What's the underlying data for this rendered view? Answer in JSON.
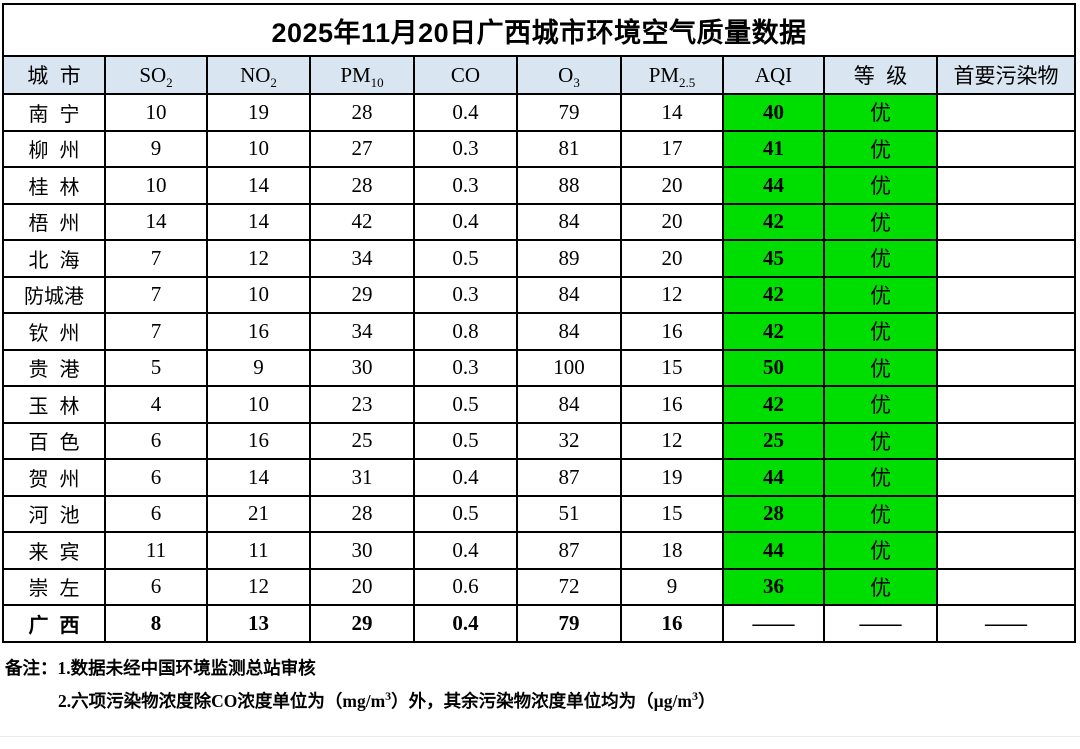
{
  "title": "2025年11月20日广西城市环境空气质量数据",
  "colors": {
    "header_bg": "#d9e5f1",
    "aqi_green": "#00dd00",
    "border": "#000000"
  },
  "table": {
    "columns": [
      {
        "base": "城市",
        "sub": ""
      },
      {
        "base": "SO",
        "sub": "2"
      },
      {
        "base": "NO",
        "sub": "2"
      },
      {
        "base": "PM",
        "sub": "10"
      },
      {
        "base": "CO",
        "sub": ""
      },
      {
        "base": "O",
        "sub": "3"
      },
      {
        "base": "PM",
        "sub": "2.5"
      },
      {
        "base": "AQI",
        "sub": ""
      },
      {
        "base": "等级",
        "sub": ""
      },
      {
        "base": "首要污染物",
        "sub": ""
      }
    ],
    "rows": [
      {
        "city": "南宁",
        "so2": "10",
        "no2": "19",
        "pm10": "28",
        "co": "0.4",
        "o3": "79",
        "pm25": "14",
        "aqi": "40",
        "grade": "优",
        "primary": ""
      },
      {
        "city": "柳州",
        "so2": "9",
        "no2": "10",
        "pm10": "27",
        "co": "0.3",
        "o3": "81",
        "pm25": "17",
        "aqi": "41",
        "grade": "优",
        "primary": ""
      },
      {
        "city": "桂林",
        "so2": "10",
        "no2": "14",
        "pm10": "28",
        "co": "0.3",
        "o3": "88",
        "pm25": "20",
        "aqi": "44",
        "grade": "优",
        "primary": ""
      },
      {
        "city": "梧州",
        "so2": "14",
        "no2": "14",
        "pm10": "42",
        "co": "0.4",
        "o3": "84",
        "pm25": "20",
        "aqi": "42",
        "grade": "优",
        "primary": ""
      },
      {
        "city": "北海",
        "so2": "7",
        "no2": "12",
        "pm10": "34",
        "co": "0.5",
        "o3": "89",
        "pm25": "20",
        "aqi": "45",
        "grade": "优",
        "primary": ""
      },
      {
        "city": "防城港",
        "so2": "7",
        "no2": "10",
        "pm10": "29",
        "co": "0.3",
        "o3": "84",
        "pm25": "12",
        "aqi": "42",
        "grade": "优",
        "primary": ""
      },
      {
        "city": "钦州",
        "so2": "7",
        "no2": "16",
        "pm10": "34",
        "co": "0.8",
        "o3": "84",
        "pm25": "16",
        "aqi": "42",
        "grade": "优",
        "primary": ""
      },
      {
        "city": "贵港",
        "so2": "5",
        "no2": "9",
        "pm10": "30",
        "co": "0.3",
        "o3": "100",
        "pm25": "15",
        "aqi": "50",
        "grade": "优",
        "primary": ""
      },
      {
        "city": "玉林",
        "so2": "4",
        "no2": "10",
        "pm10": "23",
        "co": "0.5",
        "o3": "84",
        "pm25": "16",
        "aqi": "42",
        "grade": "优",
        "primary": ""
      },
      {
        "city": "百色",
        "so2": "6",
        "no2": "16",
        "pm10": "25",
        "co": "0.5",
        "o3": "32",
        "pm25": "12",
        "aqi": "25",
        "grade": "优",
        "primary": ""
      },
      {
        "city": "贺州",
        "so2": "6",
        "no2": "14",
        "pm10": "31",
        "co": "0.4",
        "o3": "87",
        "pm25": "19",
        "aqi": "44",
        "grade": "优",
        "primary": ""
      },
      {
        "city": "河池",
        "so2": "6",
        "no2": "21",
        "pm10": "28",
        "co": "0.5",
        "o3": "51",
        "pm25": "15",
        "aqi": "28",
        "grade": "优",
        "primary": ""
      },
      {
        "city": "来宾",
        "so2": "11",
        "no2": "11",
        "pm10": "30",
        "co": "0.4",
        "o3": "87",
        "pm25": "18",
        "aqi": "44",
        "grade": "优",
        "primary": ""
      },
      {
        "city": "崇左",
        "so2": "6",
        "no2": "12",
        "pm10": "20",
        "co": "0.6",
        "o3": "72",
        "pm25": "9",
        "aqi": "36",
        "grade": "优",
        "primary": ""
      }
    ],
    "summary_row": {
      "city": "广西",
      "so2": "8",
      "no2": "13",
      "pm10": "29",
      "co": "0.4",
      "o3": "79",
      "pm25": "16",
      "aqi": "——",
      "grade": "——",
      "primary": "——"
    }
  },
  "notes": {
    "prefix": "备注：",
    "note1": "1.数据未经中国环境监测总站审核",
    "note2_a": "2.六项污染物浓度除CO浓度单位为（mg/m",
    "note2_sup_a": "3",
    "note2_b": "）外，其余污染物浓度单位均为（µg/m",
    "note2_sup_b": "3",
    "note2_c": "）"
  }
}
